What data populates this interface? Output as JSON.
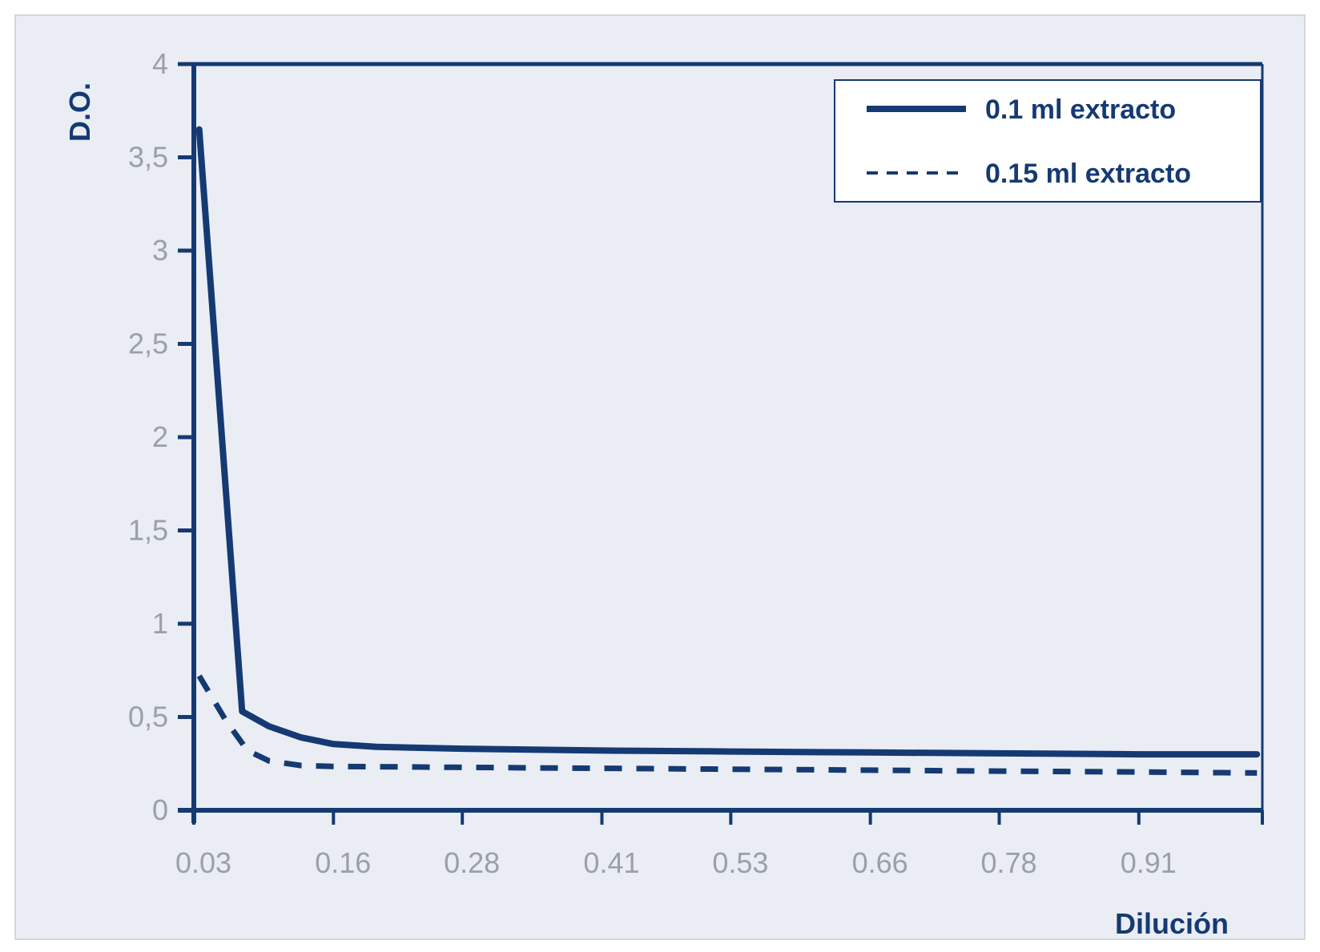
{
  "chart_data": {
    "type": "line",
    "title": "",
    "xlabel": "Dilución",
    "ylabel": "D.O.",
    "x_ticks": [
      "0.03",
      "0.16",
      "0.28",
      "0.41",
      "0.53",
      "0.66",
      "0.78",
      "0.91"
    ],
    "y_ticks": [
      "0",
      "0,5",
      "1",
      "1,5",
      "2",
      "2,5",
      "3",
      "3,5",
      "4"
    ],
    "ylim": [
      0,
      4
    ],
    "grid": false,
    "legend_position": "top-right",
    "series": [
      {
        "name": "0.1 ml extracto",
        "style": "solid",
        "color": "#153a73",
        "x": [
          0.035,
          0.075,
          0.1,
          0.13,
          0.16,
          0.2,
          0.28,
          0.41,
          0.53,
          0.66,
          0.78,
          0.91,
          1.02
        ],
        "y": [
          3.65,
          0.53,
          0.45,
          0.39,
          0.355,
          0.34,
          0.33,
          0.32,
          0.315,
          0.31,
          0.305,
          0.3,
          0.3
        ]
      },
      {
        "name": "0.15 ml extracto",
        "style": "dashed",
        "color": "#153a73",
        "x": [
          0.035,
          0.06,
          0.08,
          0.1,
          0.13,
          0.16,
          0.28,
          0.41,
          0.53,
          0.66,
          0.78,
          0.91,
          1.02
        ],
        "y": [
          0.72,
          0.48,
          0.32,
          0.265,
          0.24,
          0.235,
          0.23,
          0.225,
          0.22,
          0.215,
          0.21,
          0.205,
          0.2
        ]
      }
    ]
  }
}
